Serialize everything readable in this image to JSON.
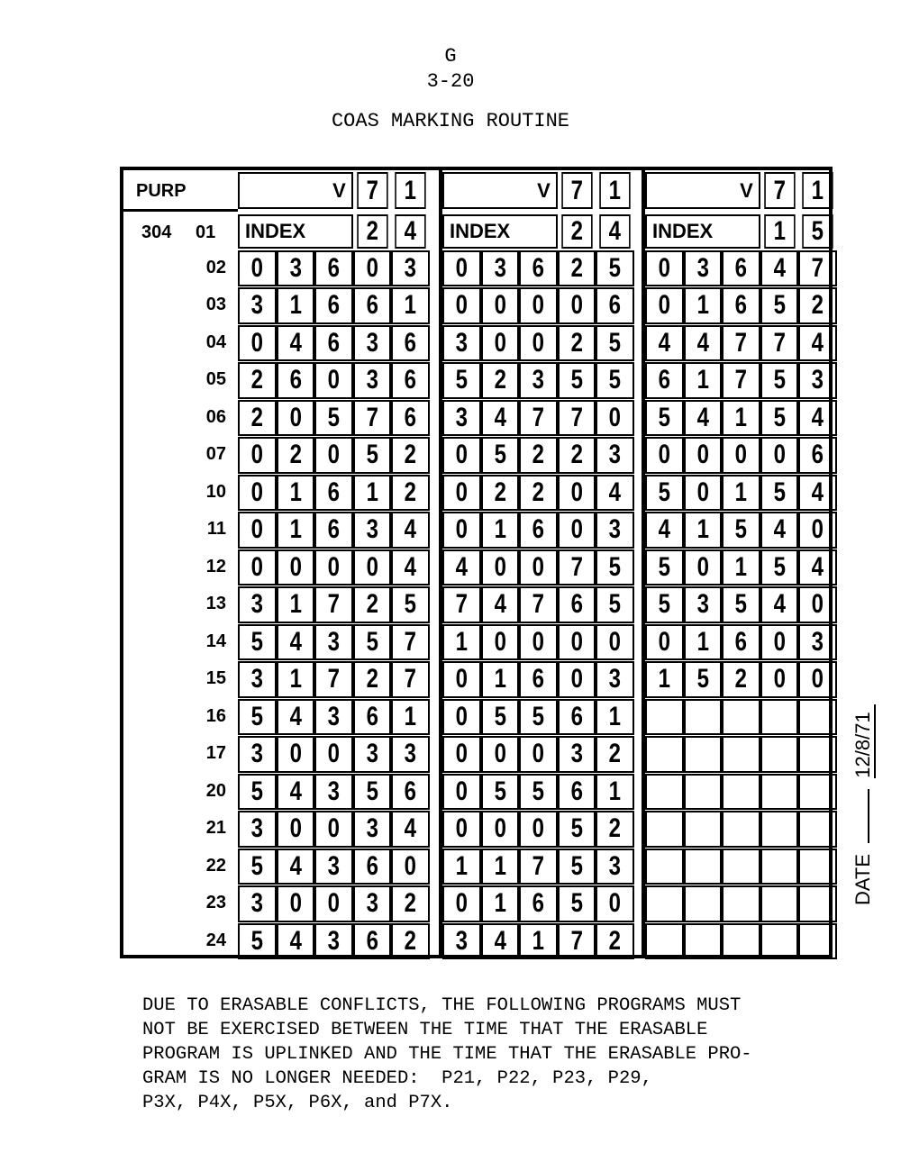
{
  "header": {
    "section": "G",
    "page": "3-20",
    "title": "COAS MARKING ROUTINE"
  },
  "table": {
    "purp_label": "PURP",
    "verb_label": "V",
    "index_label": "INDEX",
    "address_prefix": "304",
    "panels": [
      {
        "verb": [
          "7",
          "1"
        ],
        "index": [
          "2",
          "4"
        ]
      },
      {
        "verb": [
          "7",
          "1"
        ],
        "index": [
          "2",
          "4"
        ]
      },
      {
        "verb": [
          "7",
          "1"
        ],
        "index": [
          "1",
          "5"
        ]
      }
    ],
    "rows": [
      {
        "label": "02",
        "values": [
          "03603",
          "03625",
          "03647"
        ]
      },
      {
        "label": "03",
        "values": [
          "31661",
          "00006",
          "01652"
        ]
      },
      {
        "label": "04",
        "values": [
          "04636",
          "30025",
          "44774"
        ]
      },
      {
        "label": "05",
        "values": [
          "26036",
          "52355",
          "61753"
        ]
      },
      {
        "label": "06",
        "values": [
          "20576",
          "34770",
          "54154"
        ]
      },
      {
        "label": "07",
        "values": [
          "02052",
          "05223",
          "00006"
        ]
      },
      {
        "label": "10",
        "values": [
          "01612",
          "02204",
          "50154"
        ]
      },
      {
        "label": "11",
        "values": [
          "01634",
          "01603",
          "41540"
        ]
      },
      {
        "label": "12",
        "values": [
          "00004",
          "40075",
          "50154"
        ]
      },
      {
        "label": "13",
        "values": [
          "31725",
          "74765",
          "53540"
        ]
      },
      {
        "label": "14",
        "values": [
          "54357",
          "10000",
          "01603"
        ]
      },
      {
        "label": "15",
        "values": [
          "31727",
          "01603",
          "15200"
        ]
      },
      {
        "label": "16",
        "values": [
          "54361",
          "05561",
          ""
        ]
      },
      {
        "label": "17",
        "values": [
          "30033",
          "00032",
          ""
        ]
      },
      {
        "label": "20",
        "values": [
          "54356",
          "05561",
          ""
        ]
      },
      {
        "label": "21",
        "values": [
          "30034",
          "00052",
          ""
        ]
      },
      {
        "label": "22",
        "values": [
          "54360",
          "11753",
          ""
        ]
      },
      {
        "label": "23",
        "values": [
          "30032",
          "01650",
          ""
        ]
      },
      {
        "label": "24",
        "values": [
          "54362",
          "34172",
          ""
        ]
      }
    ],
    "first_row_label": "01"
  },
  "date": {
    "label": "DATE",
    "value": "12/8/71"
  },
  "footer": {
    "note": "DUE TO ERASABLE CONFLICTS, THE FOLLOWING PROGRAMS MUST\nNOT BE EXERCISED BETWEEN THE TIME THAT THE ERASABLE\nPROGRAM IS UPLINKED AND THE TIME THAT THE ERASABLE PRO-\nGRAM IS NO LONGER NEEDED:  P21, P22, P23, P29,\nP3X, P4X, P5X, P6X, and P7X."
  }
}
